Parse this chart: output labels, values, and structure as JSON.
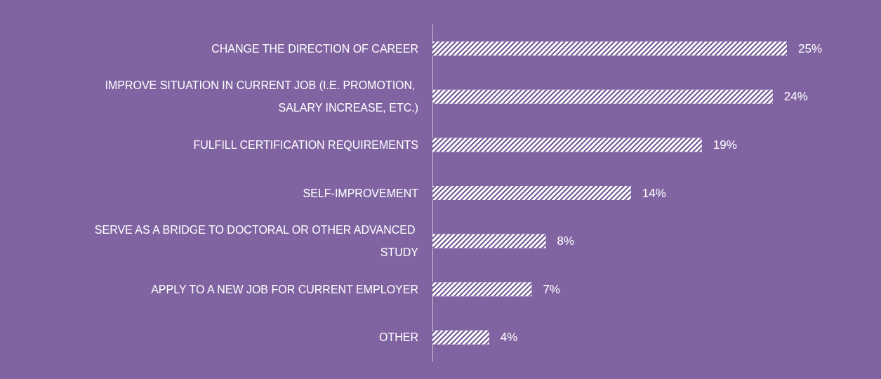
{
  "chart_data": {
    "type": "bar",
    "orientation": "horizontal",
    "categories": [
      "CHANGE THE DIRECTION OF CAREER",
      "IMPROVE SITUATION IN CURRENT JOB (I.E. PROMOTION, SALARY INCREASE, ETC.)",
      "FULFILL CERTIFICATION REQUIREMENTS",
      "SELF-IMPROVEMENT",
      "SERVE AS A BRIDGE TO DOCTORAL OR OTHER ADVANCED STUDY",
      "APPLY TO A NEW JOB FOR CURRENT EMPLOYER",
      "OTHER"
    ],
    "values": [
      25,
      24,
      19,
      14,
      8,
      7,
      4
    ],
    "value_labels": [
      "25%",
      "24%",
      "19%",
      "14%",
      "8%",
      "7%",
      "4%"
    ],
    "color": "#ffffff",
    "tick_labels": "y"
  }
}
